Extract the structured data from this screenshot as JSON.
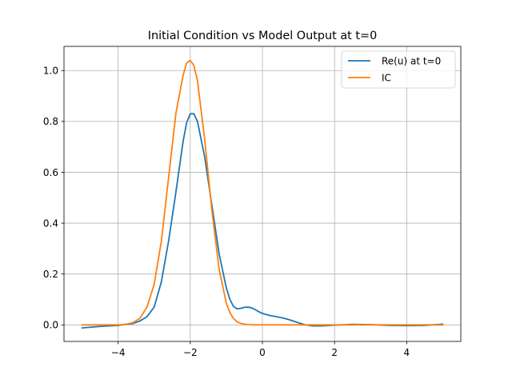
{
  "chart_data": {
    "type": "line",
    "title": "Initial Condition vs Model Output at t=0",
    "xlabel": "",
    "ylabel": "",
    "xlim": [
      -5.5,
      5.5
    ],
    "ylim": [
      -0.065,
      1.095
    ],
    "xticks": [
      -4,
      -2,
      0,
      2,
      4
    ],
    "xtick_labels": [
      "−4",
      "−2",
      "0",
      "2",
      "4"
    ],
    "yticks": [
      0.0,
      0.2,
      0.4,
      0.6,
      0.8,
      1.0
    ],
    "ytick_labels": [
      "0.0",
      "0.2",
      "0.4",
      "0.6",
      "0.8",
      "1.0"
    ],
    "grid": true,
    "legend_position": "upper-right",
    "series": [
      {
        "name": "Re(u) at t=0",
        "color": "#1f77b4",
        "x": [
          -5,
          -4.5,
          -4,
          -3.8,
          -3.6,
          -3.4,
          -3.2,
          -3.0,
          -2.8,
          -2.6,
          -2.4,
          -2.2,
          -2.1,
          -2.0,
          -1.9,
          -1.8,
          -1.6,
          -1.4,
          -1.2,
          -1.0,
          -0.9,
          -0.8,
          -0.7,
          -0.6,
          -0.5,
          -0.4,
          -0.3,
          -0.2,
          -0.1,
          0.0,
          0.2,
          0.4,
          0.6,
          0.8,
          1.0,
          1.2,
          1.4,
          1.6,
          1.8,
          2.0,
          2.5,
          3.0,
          3.5,
          4.0,
          4.5,
          5.0
        ],
        "y": [
          -0.012,
          -0.006,
          -0.002,
          0.002,
          0.005,
          0.015,
          0.032,
          0.07,
          0.17,
          0.33,
          0.52,
          0.72,
          0.795,
          0.83,
          0.83,
          0.8,
          0.66,
          0.47,
          0.28,
          0.145,
          0.1,
          0.072,
          0.063,
          0.065,
          0.069,
          0.07,
          0.067,
          0.06,
          0.052,
          0.045,
          0.037,
          0.032,
          0.026,
          0.018,
          0.008,
          0.0,
          -0.004,
          -0.004,
          -0.003,
          -0.001,
          0.002,
          0.001,
          -0.002,
          -0.003,
          -0.002,
          0.003
        ]
      },
      {
        "name": "IC",
        "color": "#ff7f0e",
        "x": [
          -5,
          -4.5,
          -4,
          -3.8,
          -3.6,
          -3.4,
          -3.2,
          -3.0,
          -2.8,
          -2.6,
          -2.4,
          -2.2,
          -2.1,
          -2.0,
          -1.9,
          -1.8,
          -1.6,
          -1.4,
          -1.2,
          -1.0,
          -0.9,
          -0.8,
          -0.7,
          -0.6,
          -0.5,
          -0.4,
          -0.2,
          0.0,
          1.0,
          2.0,
          3.0,
          4.0,
          5.0
        ],
        "y": [
          0.0,
          0.0,
          0.0,
          0.002,
          0.008,
          0.025,
          0.07,
          0.16,
          0.33,
          0.58,
          0.83,
          0.98,
          1.03,
          1.04,
          1.02,
          0.96,
          0.73,
          0.45,
          0.22,
          0.085,
          0.048,
          0.025,
          0.012,
          0.006,
          0.003,
          0.001,
          0.0,
          0.0,
          0.0,
          0.0,
          0.0,
          0.0,
          0.0
        ]
      }
    ]
  }
}
